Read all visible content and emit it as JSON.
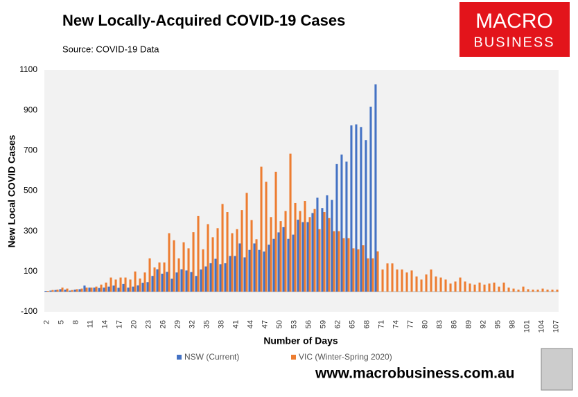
{
  "title": "New Locally-Acquired COVID-19 Cases",
  "source": "Source: COVID-19 Data",
  "logo": {
    "line1": "MACRO",
    "line2": "BUSINESS"
  },
  "website": "www.macrobusiness.com.au",
  "chart_data": {
    "type": "bar",
    "xlabel": "Number of Days",
    "ylabel": "New Local COVID Cases",
    "categories": [
      2,
      null,
      null,
      5,
      null,
      null,
      8,
      null,
      null,
      11,
      null,
      null,
      14,
      null,
      null,
      17,
      null,
      null,
      20,
      null,
      null,
      23,
      null,
      null,
      26,
      null,
      null,
      29,
      null,
      null,
      32,
      null,
      null,
      35,
      null,
      null,
      38,
      null,
      null,
      41,
      null,
      null,
      44,
      null,
      null,
      47,
      null,
      null,
      50,
      null,
      null,
      53,
      null,
      null,
      56,
      null,
      null,
      59,
      null,
      null,
      62,
      null,
      null,
      65,
      null,
      null,
      68,
      null,
      null,
      71,
      null,
      null,
      74,
      null,
      null,
      77,
      null,
      null,
      80,
      null,
      null,
      83,
      null,
      null,
      86,
      null,
      null,
      89,
      null,
      null,
      92,
      null,
      null,
      95,
      null,
      null,
      98,
      null,
      null,
      101,
      null,
      null,
      104,
      null,
      null,
      107
    ],
    "series": [
      {
        "name": "NSW (Current)",
        "color": "#4472c4",
        "values": [
          3,
          5,
          8,
          12,
          10,
          5,
          10,
          12,
          30,
          20,
          20,
          18,
          20,
          25,
          30,
          19,
          38,
          20,
          25,
          31,
          44,
          47,
          78,
          111,
          89,
          98,
          64,
          95,
          111,
          105,
          97,
          78,
          110,
          125,
          141,
          163,
          136,
          141,
          177,
          177,
          239,
          170,
          207,
          239,
          207,
          199,
          233,
          262,
          294,
          320,
          262,
          283,
          357,
          345,
          345,
          390,
          466,
          415,
          478,
          455,
          633,
          680,
          645,
          825,
          830,
          817,
          752,
          918,
          1029,
          null,
          null,
          null,
          null,
          null,
          null,
          null,
          null,
          null,
          null,
          null,
          null,
          null,
          null,
          null,
          null,
          null,
          null,
          null,
          null,
          null,
          null,
          null,
          null,
          null,
          null,
          null,
          null,
          null,
          null,
          null,
          null,
          null,
          null,
          null,
          null,
          null
        ]
      },
      {
        "name": "VIC (Winter-Spring 2020)",
        "color": "#ed7d31",
        "values": [
          3,
          8,
          10,
          20,
          15,
          8,
          12,
          15,
          20,
          20,
          25,
          35,
          45,
          70,
          60,
          70,
          70,
          60,
          100,
          65,
          95,
          165,
          120,
          145,
          145,
          290,
          255,
          165,
          245,
          215,
          295,
          375,
          210,
          335,
          270,
          315,
          435,
          395,
          290,
          310,
          405,
          490,
          355,
          260,
          620,
          545,
          370,
          595,
          350,
          400,
          685,
          440,
          400,
          450,
          370,
          410,
          310,
          395,
          365,
          300,
          300,
          265,
          265,
          215,
          210,
          230,
          165,
          165,
          200,
          110,
          140,
          140,
          110,
          110,
          95,
          105,
          75,
          60,
          85,
          110,
          75,
          70,
          60,
          40,
          50,
          70,
          50,
          40,
          35,
          45,
          35,
          40,
          45,
          25,
          45,
          20,
          15,
          10,
          25,
          12,
          10,
          10,
          15,
          10,
          10,
          10
        ]
      }
    ],
    "ylim": [
      -100,
      1100
    ],
    "yticks": [
      -100,
      100,
      300,
      500,
      700,
      900,
      1100
    ],
    "grid": false
  }
}
